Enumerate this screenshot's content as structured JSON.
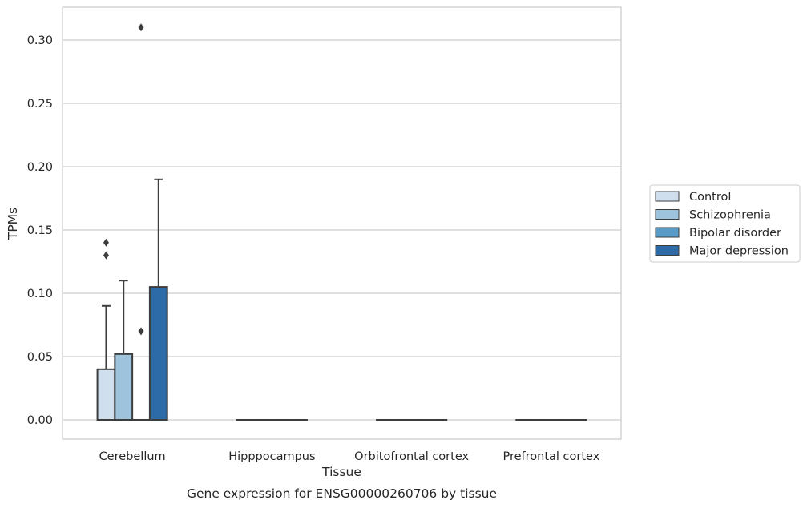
{
  "chart_data": {
    "type": "box",
    "xlabel": "Tissue",
    "ylabel": "TPMs",
    "caption": "Gene expression for ENSG00000260706 by tissue",
    "categories": [
      "Cerebellum",
      "Hipppocampus",
      "Orbitofrontal cortex",
      "Prefrontal cortex"
    ],
    "ylim": [
      -0.015,
      0.326
    ],
    "yticks": [
      0.0,
      0.05,
      0.1,
      0.15,
      0.2,
      0.25,
      0.3
    ],
    "ytick_labels": [
      "0.00",
      "0.05",
      "0.10",
      "0.15",
      "0.20",
      "0.25",
      "0.30"
    ],
    "grid": "horizontal",
    "legend_position": "right",
    "series": [
      {
        "name": "Control",
        "color": "#cfdfee",
        "boxes": [
          {
            "category": "Cerebellum",
            "q1": 0.0,
            "median": 0.0,
            "q3": 0.04,
            "whisker_low": 0.0,
            "whisker_high": 0.09,
            "outliers": [
              0.13,
              0.14
            ]
          },
          {
            "category": "Hipppocampus",
            "q1": 0.0,
            "median": 0.0,
            "q3": 0.0,
            "whisker_low": 0.0,
            "whisker_high": 0.0,
            "outliers": []
          },
          {
            "category": "Orbitofrontal cortex",
            "q1": 0.0,
            "median": 0.0,
            "q3": 0.0,
            "whisker_low": 0.0,
            "whisker_high": 0.0,
            "outliers": []
          },
          {
            "category": "Prefrontal cortex",
            "q1": 0.0,
            "median": 0.0,
            "q3": 0.0,
            "whisker_low": 0.0,
            "whisker_high": 0.0,
            "outliers": []
          }
        ]
      },
      {
        "name": "Schizophrenia",
        "color": "#9dc3dd",
        "boxes": [
          {
            "category": "Cerebellum",
            "q1": 0.0,
            "median": 0.0,
            "q3": 0.052,
            "whisker_low": 0.0,
            "whisker_high": 0.11,
            "outliers": []
          },
          {
            "category": "Hipppocampus",
            "q1": 0.0,
            "median": 0.0,
            "q3": 0.0,
            "whisker_low": 0.0,
            "whisker_high": 0.0,
            "outliers": []
          },
          {
            "category": "Orbitofrontal cortex",
            "q1": 0.0,
            "median": 0.0,
            "q3": 0.0,
            "whisker_low": 0.0,
            "whisker_high": 0.0,
            "outliers": []
          },
          {
            "category": "Prefrontal cortex",
            "q1": 0.0,
            "median": 0.0,
            "q3": 0.0,
            "whisker_low": 0.0,
            "whisker_high": 0.0,
            "outliers": []
          }
        ]
      },
      {
        "name": "Bipolar disorder",
        "color": "#5a9ac6",
        "boxes": [
          {
            "category": "Cerebellum",
            "q1": 0.0,
            "median": 0.0,
            "q3": 0.0,
            "whisker_low": 0.0,
            "whisker_high": 0.0,
            "outliers": [
              0.07,
              0.31
            ]
          },
          {
            "category": "Hipppocampus",
            "q1": 0.0,
            "median": 0.0,
            "q3": 0.0,
            "whisker_low": 0.0,
            "whisker_high": 0.0,
            "outliers": []
          },
          {
            "category": "Orbitofrontal cortex",
            "q1": 0.0,
            "median": 0.0,
            "q3": 0.0,
            "whisker_low": 0.0,
            "whisker_high": 0.0,
            "outliers": []
          },
          {
            "category": "Prefrontal cortex",
            "q1": 0.0,
            "median": 0.0,
            "q3": 0.0,
            "whisker_low": 0.0,
            "whisker_high": 0.0,
            "outliers": []
          }
        ]
      },
      {
        "name": "Major depression",
        "color": "#2c6ba8",
        "boxes": [
          {
            "category": "Cerebellum",
            "q1": 0.0,
            "median": 0.0,
            "q3": 0.105,
            "whisker_low": 0.0,
            "whisker_high": 0.19,
            "outliers": []
          },
          {
            "category": "Hipppocampus",
            "q1": 0.0,
            "median": 0.0,
            "q3": 0.0,
            "whisker_low": 0.0,
            "whisker_high": 0.0,
            "outliers": []
          },
          {
            "category": "Orbitofrontal cortex",
            "q1": 0.0,
            "median": 0.0,
            "q3": 0.0,
            "whisker_low": 0.0,
            "whisker_high": 0.0,
            "outliers": []
          },
          {
            "category": "Prefrontal cortex",
            "q1": 0.0,
            "median": 0.0,
            "q3": 0.0,
            "whisker_low": 0.0,
            "whisker_high": 0.0,
            "outliers": []
          }
        ]
      }
    ]
  }
}
